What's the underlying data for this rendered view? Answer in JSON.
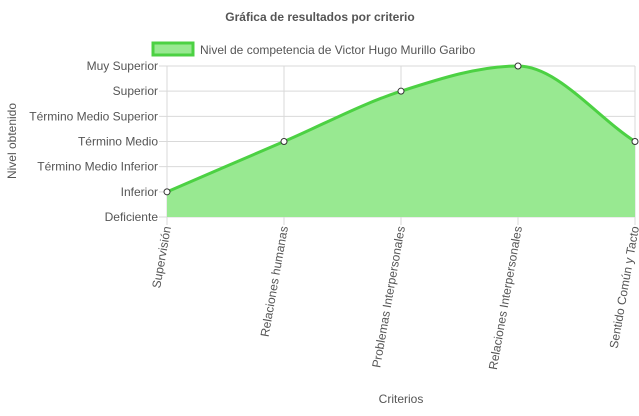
{
  "chart_data": {
    "type": "area",
    "title": "Gráfica de resultados por criterio",
    "xlabel": "Criterios",
    "ylabel": "Nivel obtenido",
    "y_levels": [
      "Deficiente",
      "Inferior",
      "Término Medio Inferior",
      "Término Medio",
      "Término Medio Superior",
      "Superior",
      "Muy Superior"
    ],
    "categories": [
      "Supervisión",
      "Relaciones humanas",
      "Problemas Interpersonales",
      "Relaciones Interpersonales",
      "Sentido Común y Tacto"
    ],
    "series": [
      {
        "name": "Nivel de competencia de Victor Hugo Murillo Garibo",
        "values": [
          "Inferior",
          "Término Medio",
          "Superior",
          "Muy Superior",
          "Término Medio"
        ]
      }
    ],
    "legend_position": "top",
    "grid": true,
    "colors": {
      "fill": "#98e991",
      "line": "#4cd143",
      "grid": "#d9d9d9",
      "text": "#555555"
    }
  }
}
